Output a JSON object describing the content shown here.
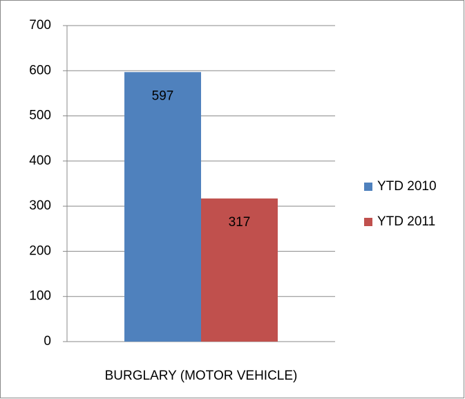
{
  "chart_data": {
    "type": "bar",
    "categories": [
      "BURGLARY (MOTOR VEHICLE)"
    ],
    "series": [
      {
        "name": "YTD 2010",
        "color": "#4f81bd",
        "values": [
          597
        ]
      },
      {
        "name": "YTD 2011",
        "color": "#c0504d",
        "values": [
          317
        ]
      }
    ],
    "ylim": [
      0,
      700
    ],
    "yticks": [
      0,
      100,
      200,
      300,
      400,
      500,
      600,
      700
    ],
    "grid": true,
    "legend": "right",
    "data_labels": true
  }
}
